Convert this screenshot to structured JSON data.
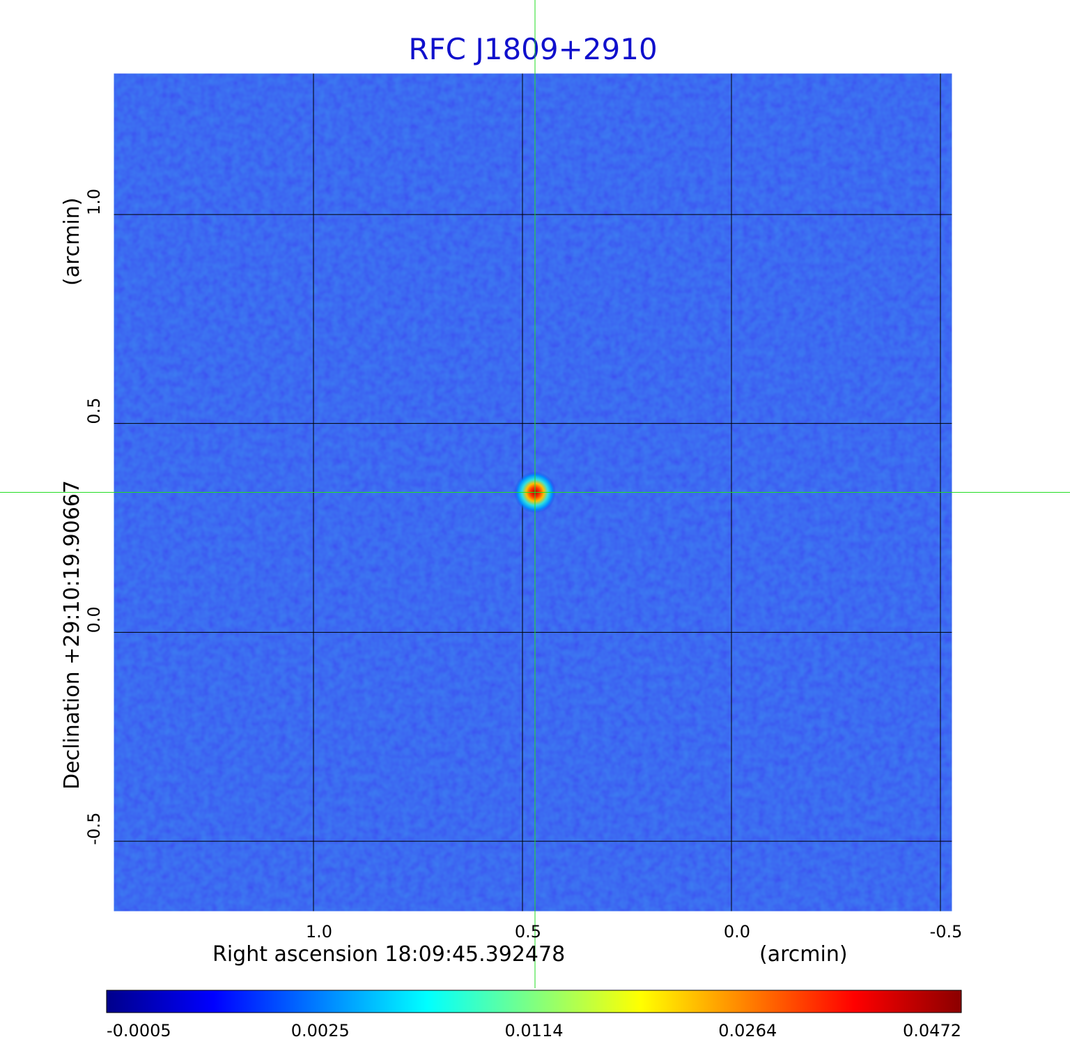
{
  "chart_data": {
    "type": "heatmap",
    "title": "RFC J1809+2910",
    "xlabel": "Right ascension  18:09:45.392478",
    "xunit": "(arcmin)",
    "ylabel": "Declination  +29:10:19.90667",
    "yunit": "(arcmin)",
    "x_ticks": [
      1.0,
      0.5,
      0.0,
      -0.5
    ],
    "x_tick_labels": [
      "1.0",
      "0.5",
      "0.0",
      "-0.5"
    ],
    "y_ticks": [
      1.0,
      0.5,
      0.0,
      -0.5
    ],
    "y_tick_labels": [
      "1.0",
      "0.5",
      "0.0",
      "-0.5"
    ],
    "xlim": [
      1.48,
      -0.53
    ],
    "ylim": [
      -0.67,
      1.34
    ],
    "grid": true,
    "crosshair": {
      "x": 0.47,
      "y": 0.335
    },
    "source": {
      "x": 0.47,
      "y": 0.335,
      "peak": 0.0472
    },
    "colorbar": {
      "tick_labels": [
        "-0.0005",
        "0.0025",
        "0.0114",
        "0.0264",
        "0.0472"
      ],
      "colors": [
        "#00008b",
        "#0000ff",
        "#0080ff",
        "#00ffff",
        "#80ff80",
        "#ffff00",
        "#ff8000",
        "#ff0000",
        "#8b0000"
      ]
    },
    "colors": {
      "title": "#1010cc",
      "background": "#1f3fe8",
      "crosshair": "#22dd22",
      "grid": "#000000"
    }
  }
}
